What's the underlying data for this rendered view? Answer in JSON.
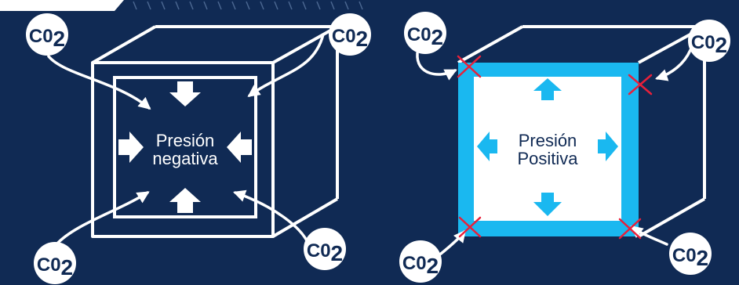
{
  "panels": [
    {
      "label_lines": [
        "Presión",
        "negativa"
      ],
      "co2_badges": [
        {
          "prefix": "C0",
          "subscript": "2"
        },
        {
          "prefix": "C0",
          "subscript": "2"
        },
        {
          "prefix": "C0",
          "subscript": "2"
        },
        {
          "prefix": "C0",
          "subscript": "2"
        }
      ]
    },
    {
      "label_lines": [
        "Presión",
        "Positiva"
      ],
      "co2_badges": [
        {
          "prefix": "C0",
          "subscript": "2"
        },
        {
          "prefix": "C0",
          "subscript": "2"
        },
        {
          "prefix": "C0",
          "subscript": "2"
        },
        {
          "prefix": "C0",
          "subscript": "2"
        }
      ]
    }
  ],
  "colors": {
    "background": "#102a54",
    "line": "#ffffff",
    "accent": "#1ab8f0",
    "blocked_mark": "#e8203a"
  }
}
